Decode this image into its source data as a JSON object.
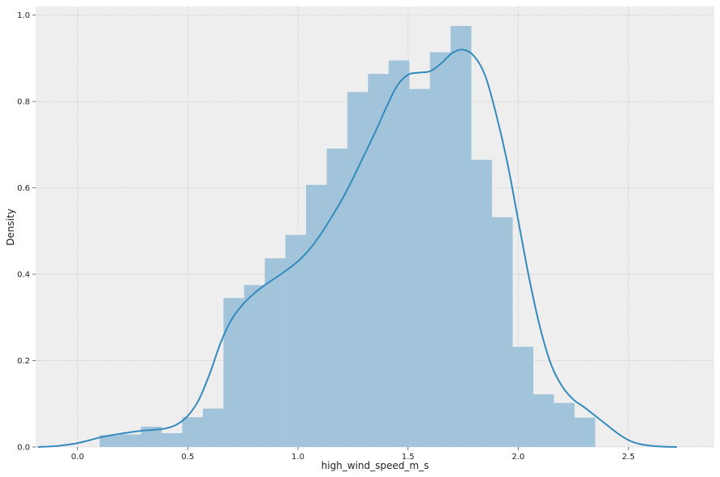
{
  "chart_data": {
    "type": "bar",
    "title": "",
    "xlabel": "high_wind_speed_m_s",
    "ylabel": "Density",
    "xlim": [
      -0.19,
      2.89
    ],
    "ylim": [
      0,
      1.02
    ],
    "grid": true,
    "x_ticks": [
      "0.0",
      "0.5",
      "1.0",
      "1.5",
      "2.0",
      "2.5"
    ],
    "x_tick_values": [
      0,
      0.5,
      1.0,
      1.5,
      2.0,
      2.5
    ],
    "y_ticks": [
      "0.0",
      "0.2",
      "0.4",
      "0.6",
      "0.8",
      "1.0"
    ],
    "y_tick_values": [
      0,
      0.2,
      0.4,
      0.6,
      0.8,
      1.0
    ],
    "histogram": {
      "bin_start": 0.1,
      "bin_width": 0.0937,
      "values": [
        0.027,
        0.029,
        0.047,
        0.032,
        0.069,
        0.089,
        0.345,
        0.375,
        0.437,
        0.491,
        0.607,
        0.691,
        0.822,
        0.864,
        0.895,
        0.829,
        0.914,
        0.975,
        0.665,
        0.532,
        0.232,
        0.122,
        0.102,
        0.068
      ]
    },
    "kde": {
      "x": [
        -0.18,
        -0.1,
        -0.05,
        0.0,
        0.05,
        0.1,
        0.15,
        0.2,
        0.25,
        0.3,
        0.35,
        0.4,
        0.45,
        0.5,
        0.55,
        0.6,
        0.65,
        0.7,
        0.75,
        0.8,
        0.85,
        0.9,
        0.95,
        1.0,
        1.05,
        1.1,
        1.15,
        1.2,
        1.25,
        1.3,
        1.35,
        1.4,
        1.45,
        1.5,
        1.55,
        1.6,
        1.65,
        1.7,
        1.75,
        1.8,
        1.85,
        1.9,
        1.95,
        2.0,
        2.05,
        2.1,
        2.15,
        2.2,
        2.25,
        2.3,
        2.35,
        2.4,
        2.45,
        2.5,
        2.55,
        2.6,
        2.65,
        2.72
      ],
      "y": [
        0.0,
        0.002,
        0.005,
        0.009,
        0.015,
        0.022,
        0.027,
        0.031,
        0.035,
        0.038,
        0.04,
        0.043,
        0.052,
        0.072,
        0.109,
        0.17,
        0.242,
        0.296,
        0.33,
        0.355,
        0.375,
        0.392,
        0.41,
        0.43,
        0.456,
        0.49,
        0.53,
        0.573,
        0.622,
        0.675,
        0.728,
        0.785,
        0.836,
        0.862,
        0.867,
        0.87,
        0.888,
        0.912,
        0.92,
        0.905,
        0.86,
        0.77,
        0.66,
        0.525,
        0.39,
        0.275,
        0.19,
        0.14,
        0.11,
        0.092,
        0.072,
        0.052,
        0.032,
        0.016,
        0.007,
        0.003,
        0.001,
        0.0
      ]
    },
    "colors": {
      "bar_fill": "#a2c4da",
      "line": "#348abd",
      "plot_background": "#eeeeee",
      "grid": "#cbcbcb"
    }
  }
}
